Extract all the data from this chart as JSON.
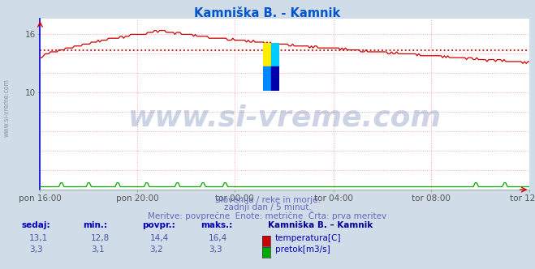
{
  "title": "Kamniška B. - Kamnik",
  "title_color": "#0055cc",
  "bg_color": "#d0dce8",
  "plot_bg_color": "#ffffff",
  "grid_color": "#ffaaaa",
  "xticklabels": [
    "pon 16:00",
    "pon 20:00",
    "tor 00:00",
    "tor 04:00",
    "tor 08:00",
    "tor 12:00"
  ],
  "xtick_positions_norm": [
    0.0,
    0.2,
    0.4,
    0.6,
    0.8,
    1.0
  ],
  "ylim": [
    0,
    17.6
  ],
  "ytick_vals": [
    10,
    16
  ],
  "avg_temp": 14.4,
  "temp_color": "#cc0000",
  "flow_color": "#00aa00",
  "left_spine_color": "#0000dd",
  "subtitle1": "Slovenija / reke in morje.",
  "subtitle2": "zadnji dan / 5 minut.",
  "subtitle3": "Meritve: povprečne  Enote: metrične  Črta: prva meritev",
  "subtitle_color": "#6666bb",
  "watermark_text": "www.si-vreme.com",
  "watermark_color": "#1a3a8a",
  "watermark_alpha": 0.22,
  "watermark_fontsize": 26,
  "legend_title": "Kamniška B. – Kamnik",
  "legend_title_color": "#000099",
  "table_header_color": "#0000bb",
  "table_value_color": "#4455aa",
  "table_headers": [
    "sedaj:",
    "min.:",
    "povpr.:",
    "maks.:"
  ],
  "table_temp_values": [
    "13,1",
    "12,8",
    "14,4",
    "16,4"
  ],
  "table_flow_values": [
    "3,3",
    "3,1",
    "3,2",
    "3,3"
  ],
  "n_points": 288
}
